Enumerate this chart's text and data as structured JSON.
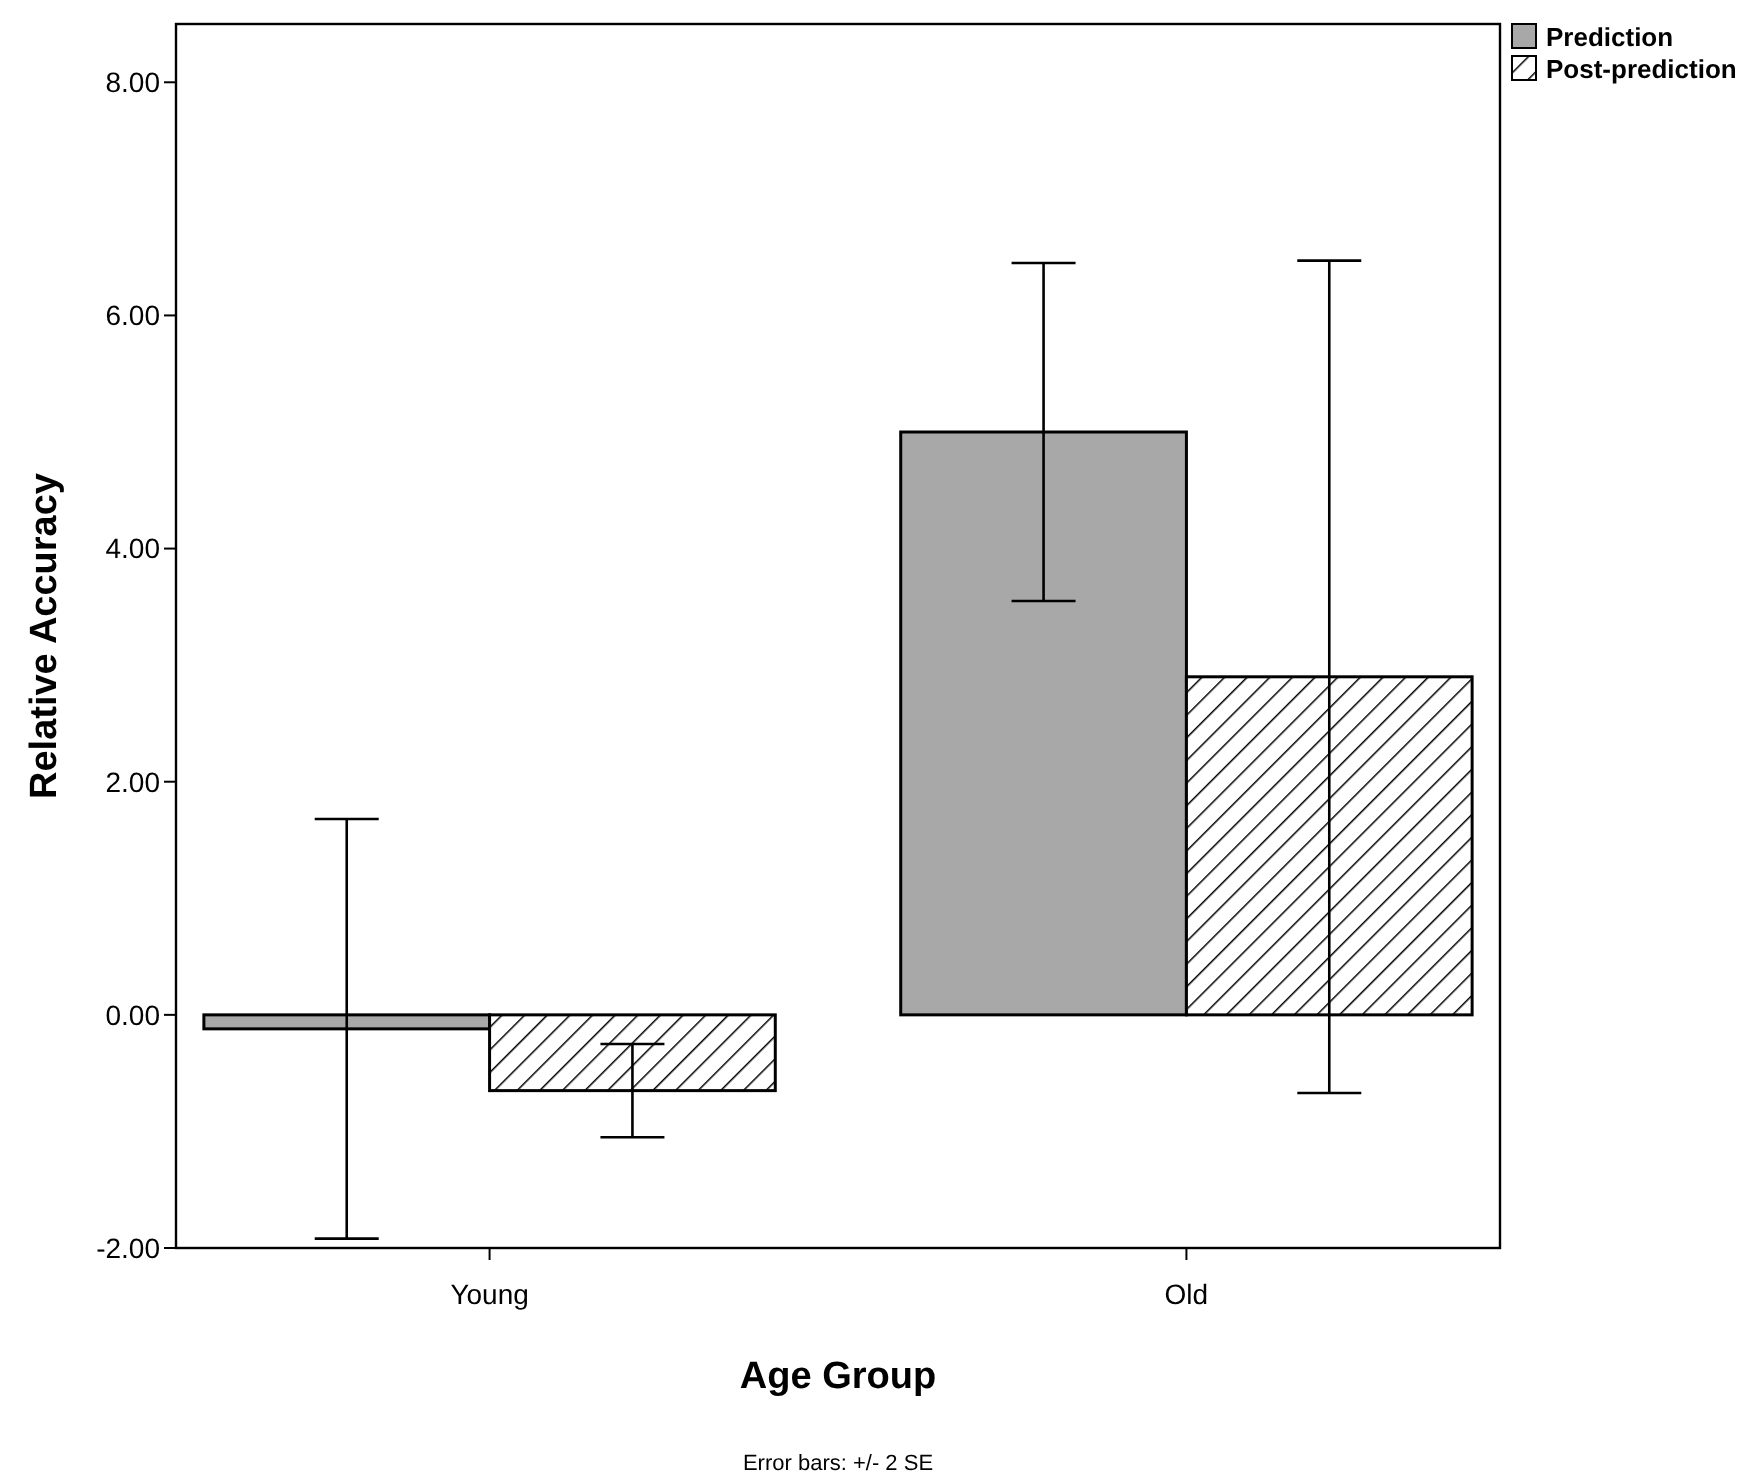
{
  "chart_data": {
    "type": "bar",
    "xlabel": "Age Group",
    "ylabel": "Relative Accuracy",
    "annotations": [
      "Error bars: +/- 2 SE"
    ],
    "categories": [
      "Young",
      "Old"
    ],
    "series": [
      {
        "name": "Prediction",
        "color": "#a8a8a8",
        "values": [
          -0.12,
          5.0
        ],
        "errors": [
          1.8,
          1.45
        ]
      },
      {
        "name": "Post-prediction",
        "color": "#000000",
        "values": [
          -0.65,
          2.9
        ],
        "errors": [
          0.4,
          3.57
        ]
      }
    ],
    "ylim": [
      -2,
      8.5
    ],
    "yticks": [
      {
        "value": -2,
        "label": "-2.00"
      },
      {
        "value": 0,
        "label": "0.00"
      },
      {
        "value": 2,
        "label": "2.00"
      },
      {
        "value": 4,
        "label": "4.00"
      },
      {
        "value": 6,
        "label": "6.00"
      },
      {
        "value": 8,
        "label": "8.00"
      }
    ],
    "legend": "top right",
    "grid": false
  }
}
